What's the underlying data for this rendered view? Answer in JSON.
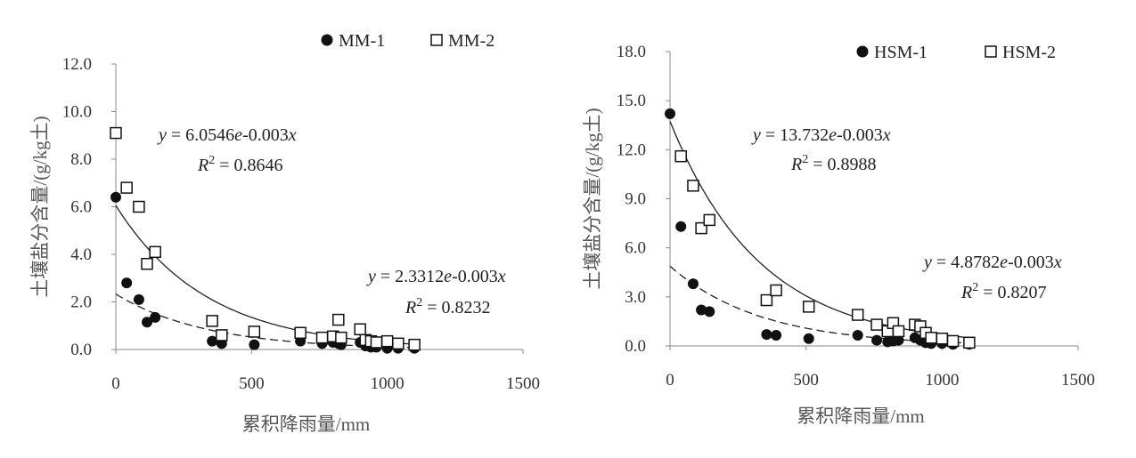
{
  "chart_data": [
    {
      "type": "scatter",
      "xlabel": "累积降雨量/mm",
      "ylabel": "土壤盐分含量/(g/kg土)",
      "xlim": [
        0,
        1500
      ],
      "ylim": [
        0,
        12
      ],
      "x_ticks": [
        "0",
        "500",
        "1000",
        "1500"
      ],
      "y_ticks": [
        "0.0",
        "2.0",
        "4.0",
        "6.0",
        "8.0",
        "10.0",
        "12.0"
      ],
      "grid": false,
      "legend_position": "top",
      "series": [
        {
          "name": "MM-1",
          "marker": "filled-circle",
          "points": [
            [
              0,
              6.4
            ],
            [
              40,
              2.8
            ],
            [
              85,
              2.1
            ],
            [
              115,
              1.15
            ],
            [
              145,
              1.35
            ],
            [
              355,
              0.35
            ],
            [
              390,
              0.25
            ],
            [
              510,
              0.2
            ],
            [
              680,
              0.35
            ],
            [
              760,
              0.25
            ],
            [
              800,
              0.3
            ],
            [
              820,
              0.25
            ],
            [
              830,
              0.2
            ],
            [
              900,
              0.3
            ],
            [
              920,
              0.15
            ],
            [
              940,
              0.1
            ],
            [
              960,
              0.1
            ],
            [
              1000,
              0.05
            ],
            [
              1040,
              0.05
            ],
            [
              1100,
              0.05
            ]
          ]
        },
        {
          "name": "MM-2",
          "marker": "open-square",
          "points": [
            [
              0,
              9.1
            ],
            [
              40,
              6.8
            ],
            [
              85,
              6.0
            ],
            [
              115,
              3.6
            ],
            [
              145,
              4.1
            ],
            [
              355,
              1.2
            ],
            [
              390,
              0.6
            ],
            [
              510,
              0.75
            ],
            [
              680,
              0.7
            ],
            [
              760,
              0.5
            ],
            [
              800,
              0.55
            ],
            [
              820,
              1.25
            ],
            [
              830,
              0.5
            ],
            [
              900,
              0.85
            ],
            [
              920,
              0.4
            ],
            [
              940,
              0.35
            ],
            [
              960,
              0.3
            ],
            [
              1000,
              0.35
            ],
            [
              1040,
              0.25
            ],
            [
              1100,
              0.2
            ]
          ]
        }
      ],
      "trendlines": [
        {
          "series": "MM-2",
          "style": "solid",
          "a": 6.0546,
          "b": -0.003,
          "eq_text": "y = 6.0546e-0.003x",
          "r2_text": "R2 = 0.8646"
        },
        {
          "series": "MM-1",
          "style": "dashed",
          "a": 2.3312,
          "b": -0.003,
          "eq_text": "y = 2.3312e-0.003x",
          "r2_text": "R2 = 0.8232"
        }
      ]
    },
    {
      "type": "scatter",
      "xlabel": "累积降雨量/mm",
      "ylabel": "土壤盐分含量/(g/kg土)",
      "xlim": [
        0,
        1500
      ],
      "ylim": [
        0,
        18
      ],
      "x_ticks": [
        "0",
        "500",
        "1000",
        "1500"
      ],
      "y_ticks": [
        "0.0",
        "3.0",
        "6.0",
        "9.0",
        "12.0",
        "15.0",
        "18.0"
      ],
      "grid": false,
      "legend_position": "top",
      "series": [
        {
          "name": "HSM-1",
          "marker": "filled-circle",
          "points": [
            [
              0,
              14.2
            ],
            [
              40,
              7.3
            ],
            [
              85,
              3.8
            ],
            [
              115,
              2.2
            ],
            [
              145,
              2.1
            ],
            [
              355,
              0.7
            ],
            [
              390,
              0.65
            ],
            [
              510,
              0.45
            ],
            [
              690,
              0.65
            ],
            [
              760,
              0.35
            ],
            [
              800,
              0.25
            ],
            [
              820,
              0.3
            ],
            [
              840,
              0.35
            ],
            [
              900,
              0.5
            ],
            [
              920,
              0.35
            ],
            [
              940,
              0.2
            ],
            [
              960,
              0.15
            ],
            [
              1000,
              0.15
            ],
            [
              1040,
              0.1
            ],
            [
              1100,
              0.1
            ]
          ]
        },
        {
          "name": "HSM-2",
          "marker": "open-square",
          "points": [
            [
              40,
              11.6
            ],
            [
              85,
              9.8
            ],
            [
              115,
              7.2
            ],
            [
              145,
              7.7
            ],
            [
              355,
              2.8
            ],
            [
              390,
              3.4
            ],
            [
              510,
              2.4
            ],
            [
              690,
              1.9
            ],
            [
              760,
              1.3
            ],
            [
              800,
              0.9
            ],
            [
              820,
              1.4
            ],
            [
              840,
              0.9
            ],
            [
              900,
              1.3
            ],
            [
              920,
              1.2
            ],
            [
              940,
              0.8
            ],
            [
              960,
              0.5
            ],
            [
              1000,
              0.45
            ],
            [
              1040,
              0.3
            ],
            [
              1100,
              0.2
            ]
          ]
        }
      ],
      "trendlines": [
        {
          "series": "HSM-2",
          "style": "solid",
          "a": 13.732,
          "b": -0.003,
          "eq_text": "y = 13.732e-0.003x",
          "r2_text": "R2 = 0.8988"
        },
        {
          "series": "HSM-1",
          "style": "dashed",
          "a": 4.8782,
          "b": -0.003,
          "eq_text": "y = 4.8782e-0.003x",
          "r2_text": "R2 = 0.8207"
        }
      ]
    }
  ]
}
